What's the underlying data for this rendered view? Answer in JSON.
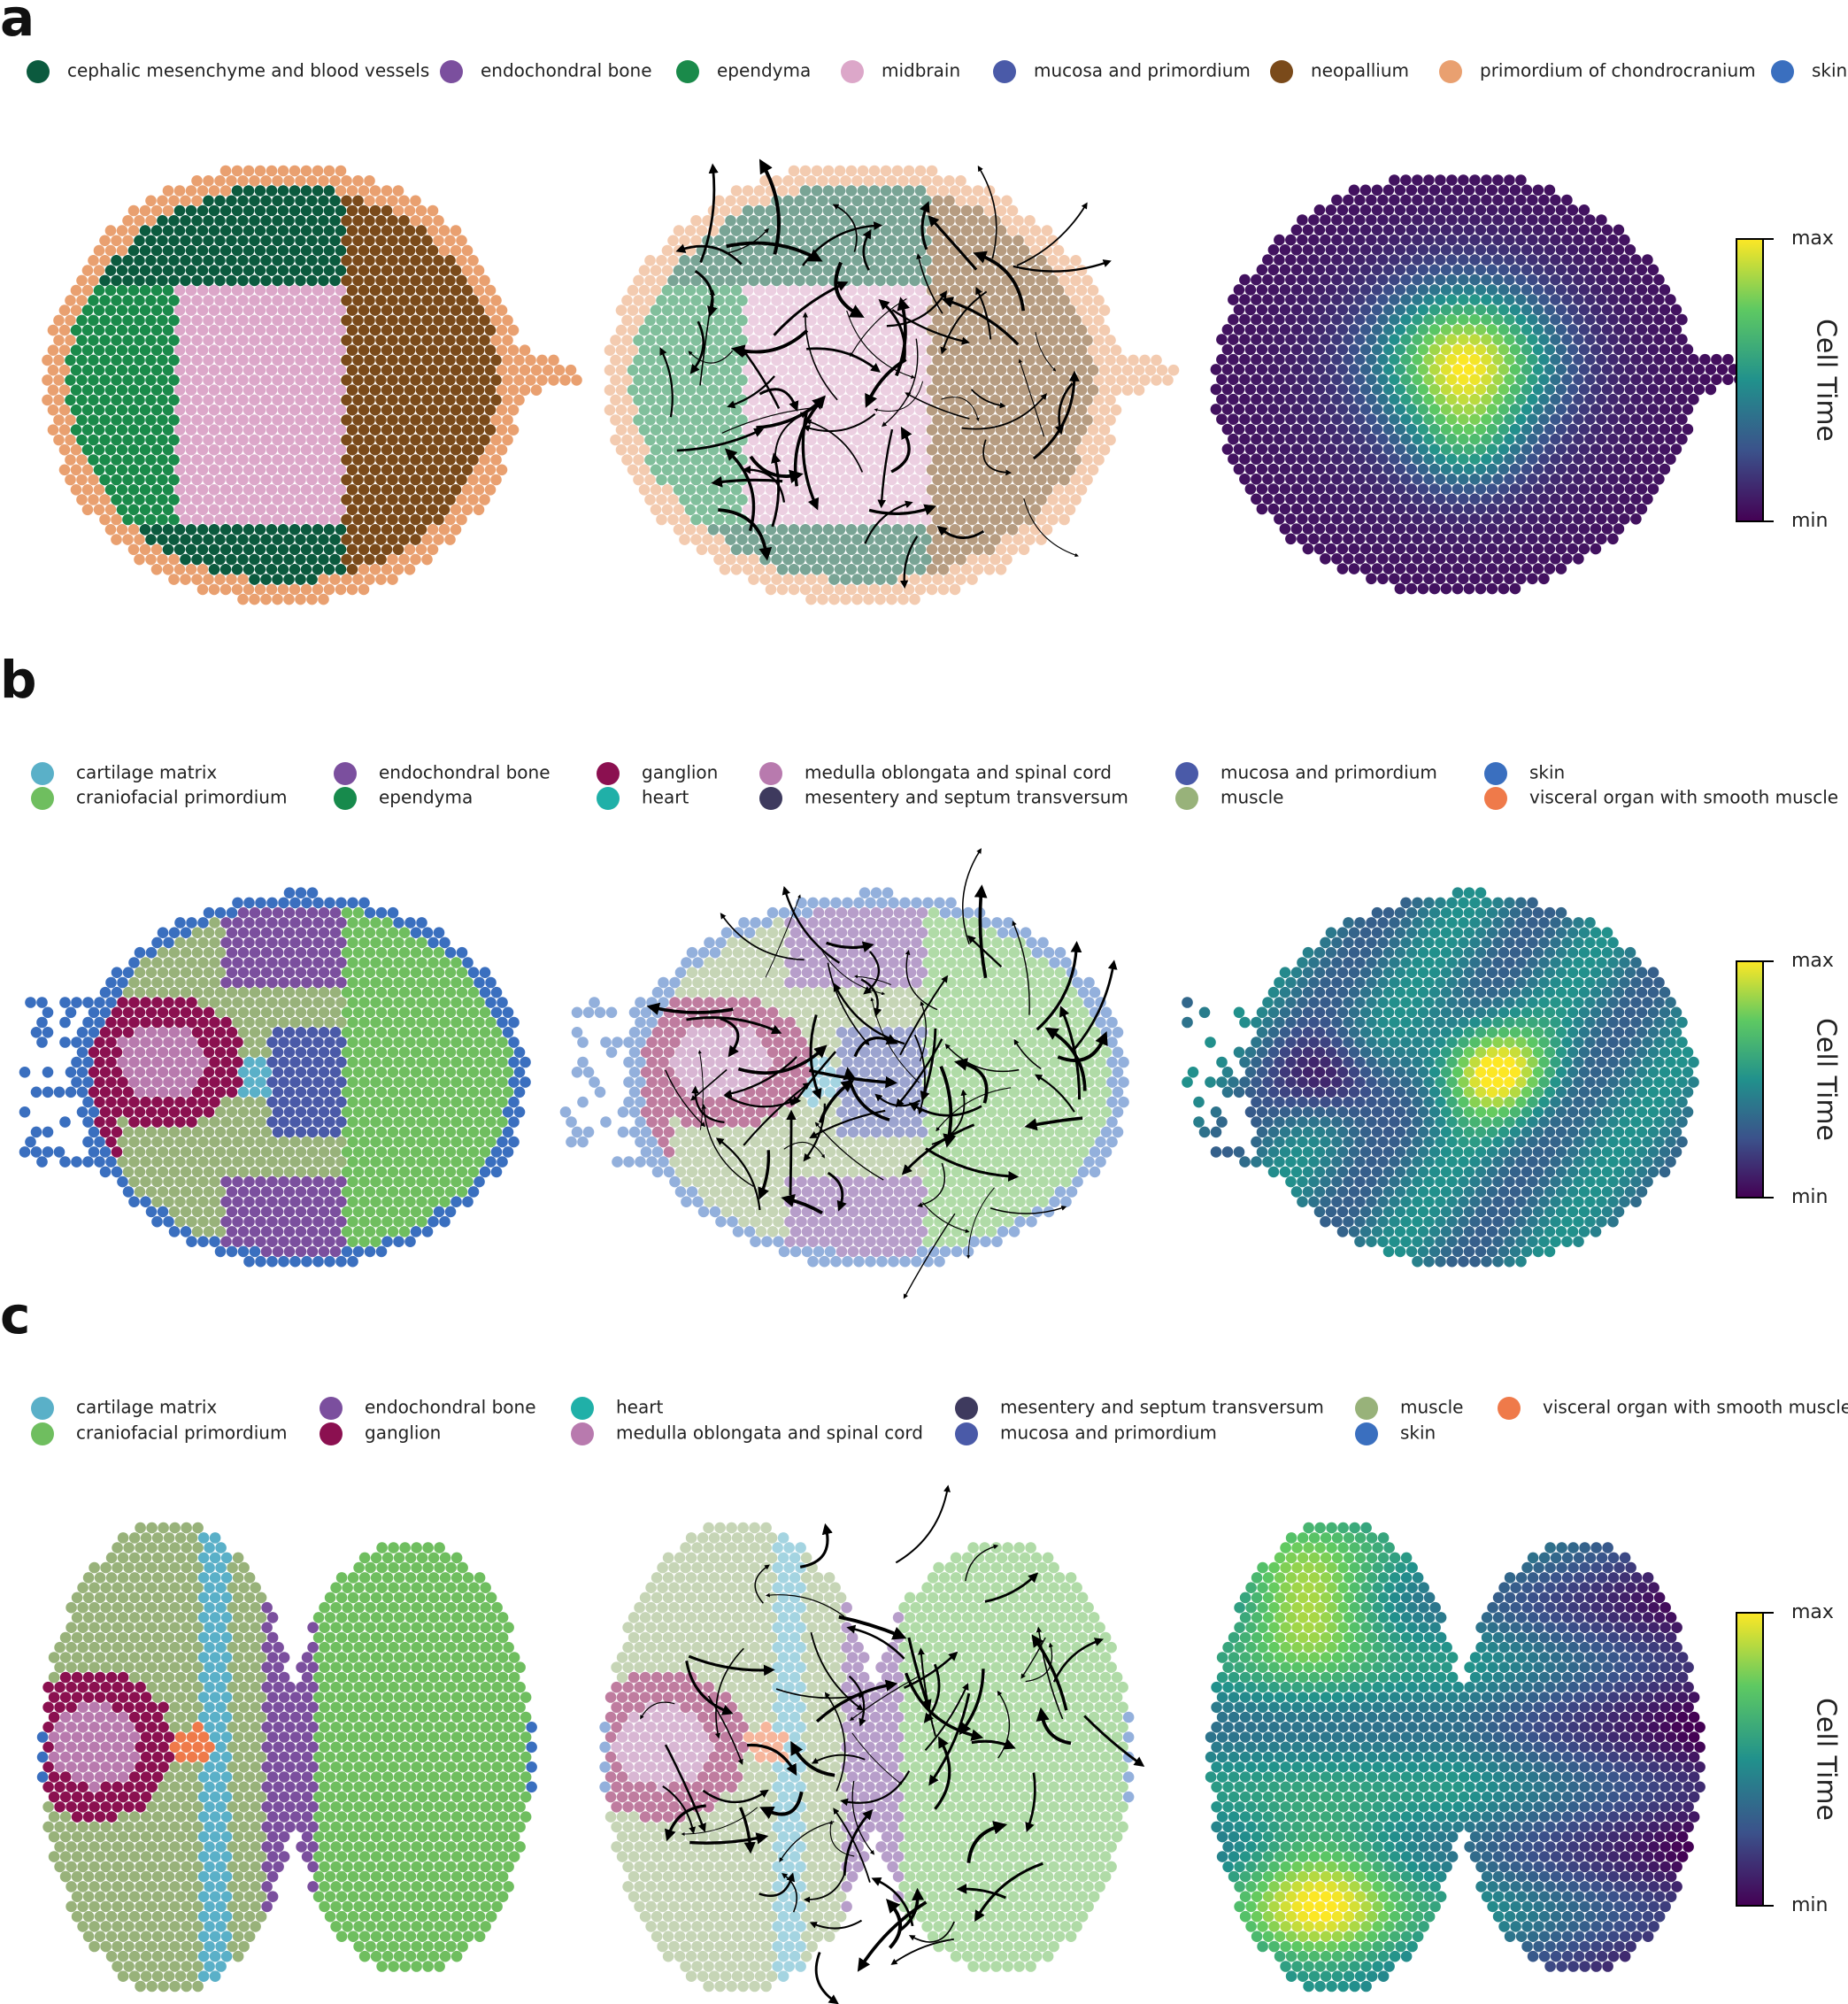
{
  "panels": [
    {
      "label": "a",
      "legend": [
        {
          "name": "cephalic mesenchyme and blood vessels",
          "color": "#0b5a3e"
        },
        {
          "name": "endochondral bone",
          "color": "#7b4f9e"
        },
        {
          "name": "ependyma",
          "color": "#1a8a4a"
        },
        {
          "name": "midbrain",
          "color": "#dca7c9"
        },
        {
          "name": "mucosa and primordium",
          "color": "#4a5aa8"
        },
        {
          "name": "neopallium",
          "color": "#7a4a1a"
        },
        {
          "name": "primordium of chondrocranium",
          "color": "#e9a070"
        },
        {
          "name": "skin",
          "color": "#3a6fbf"
        }
      ],
      "colorbar": {
        "title": "Cell Time",
        "max": "max",
        "min": "min"
      }
    },
    {
      "label": "b",
      "legend": [
        {
          "name": "cartilage matrix",
          "color": "#5ab0c8"
        },
        {
          "name": "craniofacial primordium",
          "color": "#6fbe5f"
        },
        {
          "name": "endochondral bone",
          "color": "#7b4f9e"
        },
        {
          "name": "ependyma",
          "color": "#178a4c"
        },
        {
          "name": "ganglion",
          "color": "#8b1050"
        },
        {
          "name": "heart",
          "color": "#20b0a8"
        },
        {
          "name": "medulla oblongata and spinal cord",
          "color": "#b87aae"
        },
        {
          "name": "mesentery and septum transversum",
          "color": "#3e3a5e"
        },
        {
          "name": "mucosa and primordium",
          "color": "#4a5aa8"
        },
        {
          "name": "muscle",
          "color": "#98b27a"
        },
        {
          "name": "skin",
          "color": "#3a6fbf"
        },
        {
          "name": "visceral organ with smooth muscle",
          "color": "#ef7a4a"
        }
      ],
      "colorbar": {
        "title": "Cell Time",
        "max": "max",
        "min": "min"
      }
    },
    {
      "label": "c",
      "legend": [
        {
          "name": "cartilage matrix",
          "color": "#5ab0c8"
        },
        {
          "name": "craniofacial primordium",
          "color": "#6fbe5f"
        },
        {
          "name": "endochondral bone",
          "color": "#7b4f9e"
        },
        {
          "name": "ganglion",
          "color": "#8b1050"
        },
        {
          "name": "heart",
          "color": "#20b0a8"
        },
        {
          "name": "medulla oblongata and spinal cord",
          "color": "#b87aae"
        },
        {
          "name": "mesentery and septum transversum",
          "color": "#3e3a5e"
        },
        {
          "name": "mucosa and primordium",
          "color": "#4a5aa8"
        },
        {
          "name": "muscle",
          "color": "#98b27a"
        },
        {
          "name": "skin",
          "color": "#3a6fbf"
        },
        {
          "name": "visceral organ with smooth muscle",
          "color": "#ef7a4a"
        }
      ],
      "colorbar": {
        "title": "Cell Time",
        "max": "max",
        "min": "min"
      }
    }
  ]
}
